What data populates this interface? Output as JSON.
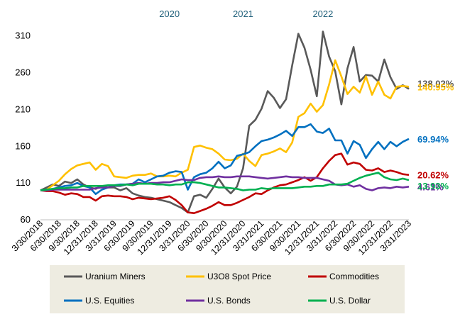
{
  "chart_data": {
    "type": "line",
    "x": [
      "3/30/2018",
      "4/30/2018",
      "5/31/2018",
      "6/30/2018",
      "7/31/2018",
      "8/31/2018",
      "9/30/2018",
      "10/31/2018",
      "11/30/2018",
      "12/31/2018",
      "1/31/2019",
      "2/28/2019",
      "3/31/2019",
      "4/30/2019",
      "5/31/2019",
      "6/30/2019",
      "7/31/2019",
      "8/31/2019",
      "9/30/2019",
      "10/31/2019",
      "11/30/2019",
      "12/31/2019",
      "1/31/2020",
      "2/29/2020",
      "3/31/2020",
      "4/30/2020",
      "5/31/2020",
      "6/30/2020",
      "7/31/2020",
      "8/31/2020",
      "9/30/2020",
      "10/31/2020",
      "11/30/2020",
      "12/31/2020",
      "1/31/2021",
      "2/28/2021",
      "3/31/2021",
      "4/30/2021",
      "5/31/2021",
      "6/30/2021",
      "7/31/2021",
      "8/31/2021",
      "9/30/2021",
      "10/31/2021",
      "11/30/2021",
      "12/31/2021",
      "1/31/2022",
      "2/28/2022",
      "3/31/2022",
      "4/30/2022",
      "5/31/2022",
      "6/30/2022",
      "7/31/2022",
      "8/31/2022",
      "9/30/2022",
      "10/31/2022",
      "11/30/2022",
      "12/31/2022",
      "1/31/2023",
      "2/28/2023",
      "3/31/2023"
    ],
    "x_tick_labels": [
      "3/30/2018",
      "6/30/2018",
      "9/30/2018",
      "12/31/2018",
      "3/31/2019",
      "6/30/2019",
      "9/30/2019",
      "12/31/2019",
      "3/31/2020",
      "6/30/2020",
      "9/30/2020",
      "12/31/2020",
      "3/31/2021",
      "6/30/2021",
      "9/30/2021",
      "12/31/2021",
      "3/31/2022",
      "6/30/2022",
      "9/30/2022",
      "12/31/2022",
      "3/31/2023"
    ],
    "year_labels": [
      {
        "label": "2020",
        "at": "12/31/2019"
      },
      {
        "label": "2021",
        "at": "12/31/2020"
      },
      {
        "label": "2022",
        "at": "1/31/2022"
      }
    ],
    "yticks": [
      60,
      110,
      160,
      210,
      260,
      310
    ],
    "ylim": [
      60,
      330
    ],
    "grid": false,
    "legend_position": "bottom",
    "series": [
      {
        "name": "Uranium Miners",
        "color": "#595959",
        "end_label": "138.02%",
        "values": [
          100,
          104,
          108,
          106,
          112,
          110,
          115,
          108,
          104,
          102,
          106,
          104,
          104,
          100,
          103,
          96,
          93,
          91,
          90,
          88,
          86,
          84,
          80,
          76,
          70,
          92,
          94,
          90,
          102,
          116,
          104,
          96,
          105,
          130,
          188,
          196,
          211,
          235,
          226,
          212,
          224,
          270,
          313,
          294,
          264,
          228,
          316,
          282,
          262,
          217,
          266,
          295,
          248,
          257,
          256,
          248,
          278,
          254,
          238,
          243,
          238
        ],
        "y_label_offset": -8
      },
      {
        "name": "U3O8 Spot Price",
        "color": "#FFC000",
        "end_label": "140.95%",
        "values": [
          100,
          101,
          107,
          113,
          122,
          129,
          134,
          136,
          138,
          128,
          136,
          133,
          119,
          118,
          117,
          120,
          121,
          121,
          123,
          119,
          119,
          120,
          119,
          124,
          128,
          159,
          161,
          158,
          156,
          150,
          142,
          141,
          143,
          150,
          140,
          133,
          148,
          150,
          153,
          157,
          152,
          165,
          200,
          205,
          218,
          207,
          216,
          244,
          277,
          255,
          231,
          241,
          233,
          255,
          230,
          248,
          230,
          225,
          241,
          242,
          241
        ],
        "y_label_offset": 0
      },
      {
        "name": "Commodities",
        "color": "#C00000",
        "end_label": "20.62%",
        "values": [
          100,
          99,
          99,
          97,
          94,
          96,
          95,
          91,
          91,
          86,
          92,
          93,
          92,
          92,
          91,
          88,
          90,
          89,
          88,
          89,
          90,
          92,
          87,
          80,
          70,
          69,
          72,
          75,
          79,
          84,
          80,
          80,
          83,
          87,
          91,
          96,
          95,
          100,
          104,
          107,
          108,
          111,
          114,
          118,
          113,
          118,
          130,
          140,
          148,
          150,
          135,
          138,
          136,
          128,
          127,
          130,
          125,
          127,
          125,
          122,
          121
        ],
        "y_label_offset": 0
      },
      {
        "name": "U.S. Equities",
        "color": "#0070C0",
        "end_label": "69.94%",
        "values": [
          100,
          101,
          102,
          104,
          106,
          107,
          110,
          106,
          104,
          95,
          101,
          104,
          107,
          108,
          108,
          109,
          115,
          111,
          115,
          119,
          120,
          124,
          126,
          125,
          101,
          118,
          122,
          124,
          130,
          139,
          130,
          134,
          147,
          149,
          152,
          160,
          167,
          169,
          172,
          176,
          181,
          174,
          186,
          186,
          190,
          180,
          178,
          184,
          168,
          168,
          150,
          167,
          162,
          144,
          156,
          166,
          156,
          166,
          160,
          166,
          170
        ],
        "y_label_offset": 0
      },
      {
        "name": "U.S. Bonds",
        "color": "#7030A0",
        "end_label": "4.61%",
        "values": [
          100,
          100,
          101,
          101,
          101,
          101,
          101,
          101,
          101,
          103,
          104,
          104,
          106,
          106,
          108,
          109,
          110,
          109,
          110,
          110,
          111,
          111,
          113,
          115,
          114,
          114,
          117,
          118,
          118,
          119,
          118,
          118,
          119,
          119,
          119,
          118,
          117,
          116,
          117,
          118,
          119,
          118,
          118,
          117,
          117,
          117,
          115,
          113,
          108,
          107,
          108,
          105,
          107,
          102,
          100,
          103,
          104,
          103,
          105,
          104,
          105
        ],
        "y_label_offset": 0
      },
      {
        "name": "U.S. Dollar",
        "color": "#00B050",
        "end_label": "13.93%",
        "values": [
          100,
          101,
          102,
          103,
          103,
          104,
          104,
          106,
          106,
          106,
          106,
          107,
          107,
          107,
          108,
          107,
          109,
          109,
          109,
          108,
          108,
          107,
          108,
          108,
          111,
          111,
          110,
          108,
          106,
          104,
          104,
          103,
          102,
          100,
          101,
          101,
          103,
          102,
          103,
          103,
          103,
          103,
          104,
          105,
          105,
          106,
          106,
          108,
          108,
          108,
          109,
          113,
          117,
          120,
          122,
          124,
          118,
          115,
          114,
          116,
          114
        ],
        "y_label_offset": 8
      }
    ]
  }
}
